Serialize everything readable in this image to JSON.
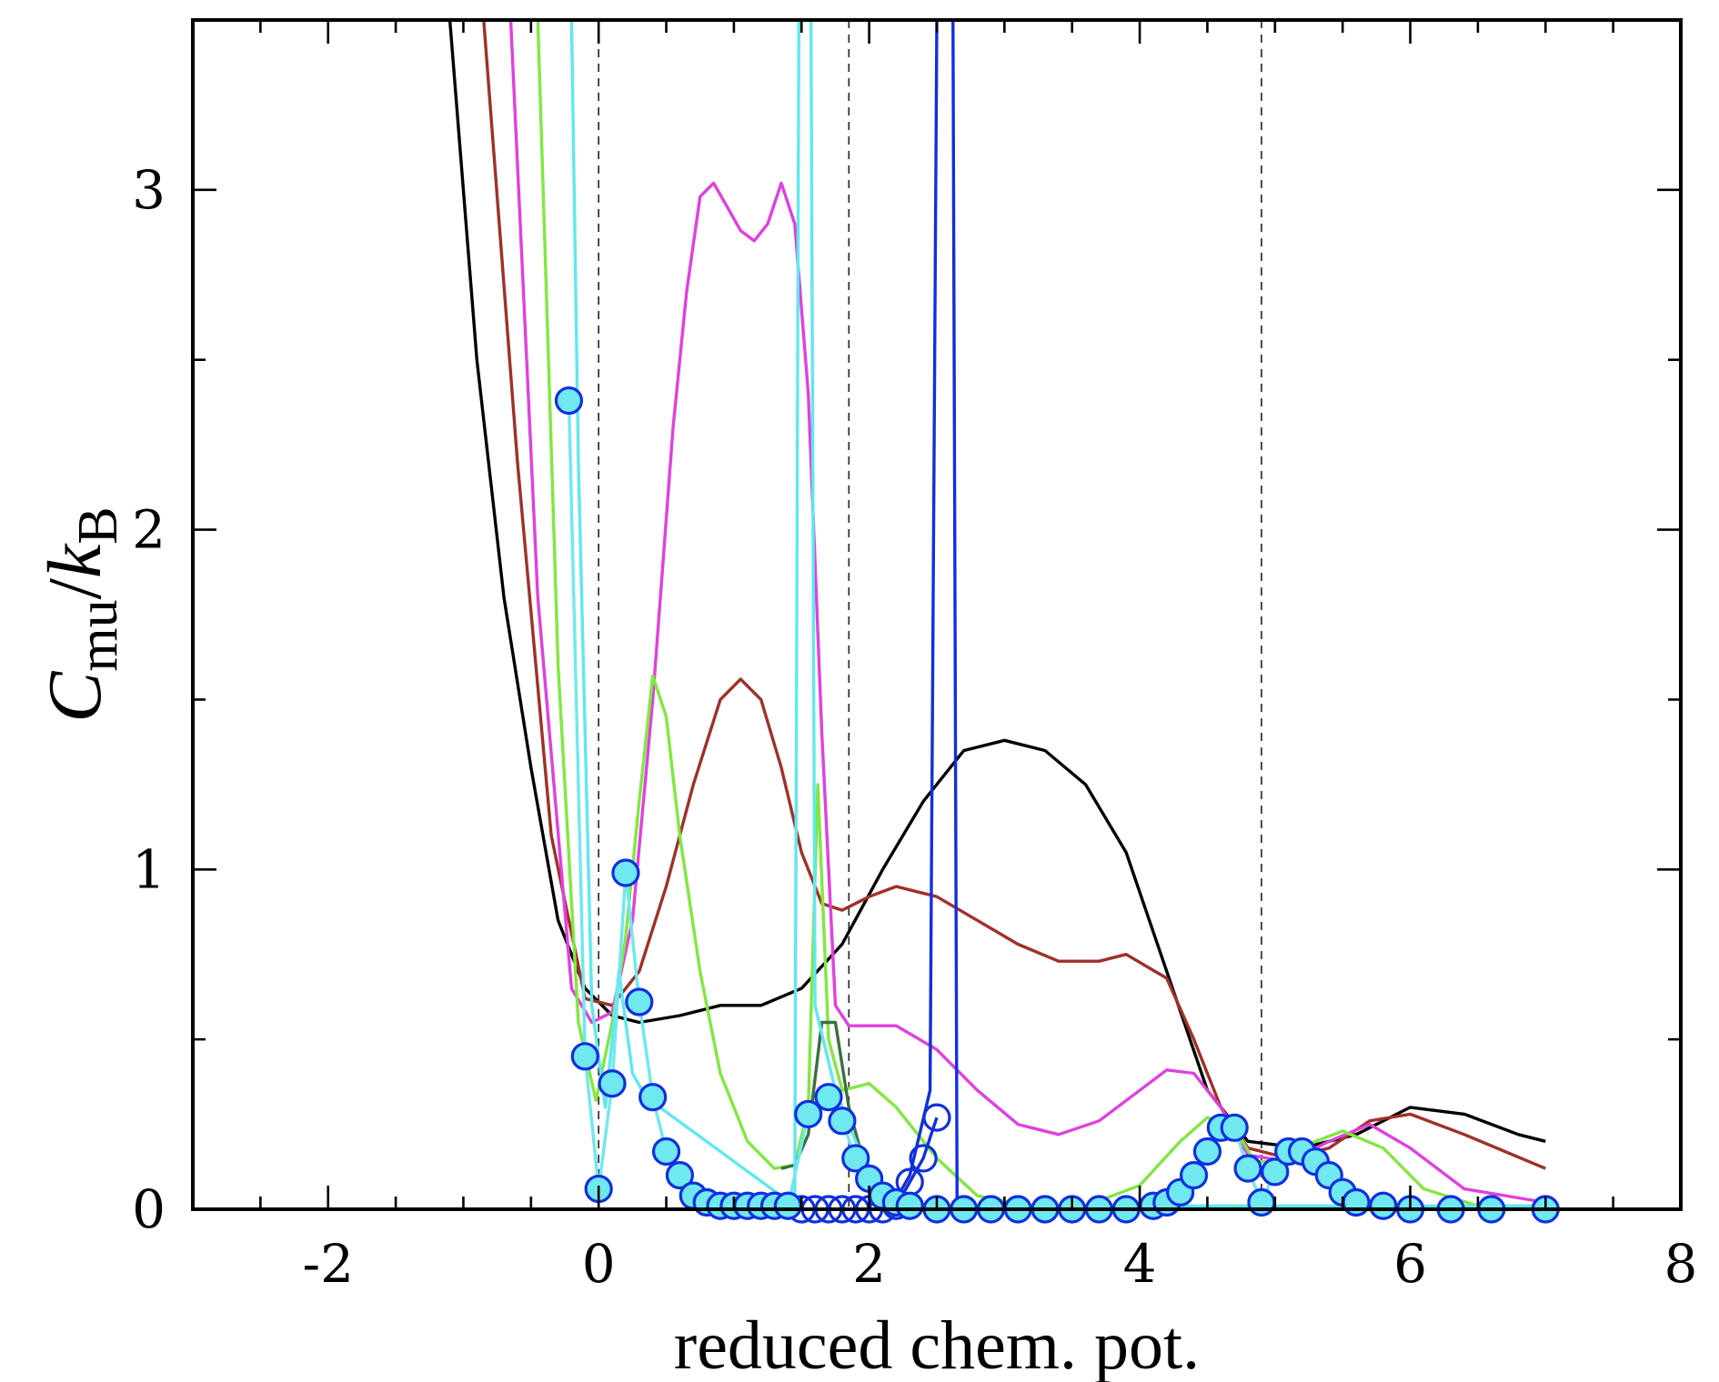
{
  "chart_data": {
    "type": "line",
    "title": "",
    "xlabel": "reduced chem. pot.",
    "ylabel": {
      "main": "C",
      "main_sub": "mu",
      "slash": "/",
      "denom": "k",
      "denom_sub": "B"
    },
    "xlim": [
      -3,
      8
    ],
    "ylim": [
      0,
      3.5
    ],
    "x_ticks": [
      -2,
      0,
      2,
      4,
      6,
      8
    ],
    "x_tick_labels": [
      "-2",
      "0",
      "2",
      "4",
      "6",
      "8"
    ],
    "y_ticks": [
      0,
      1,
      2,
      3
    ],
    "y_tick_labels": [
      "0",
      "1",
      "2",
      "3"
    ],
    "reference_lines_x": [
      0,
      1.85,
      4.9
    ],
    "grid": false,
    "series": [
      {
        "name": "black",
        "color": "#000000",
        "points": [
          [
            -1.1,
            3.5
          ],
          [
            -0.9,
            2.5
          ],
          [
            -0.7,
            1.8
          ],
          [
            -0.5,
            1.3
          ],
          [
            -0.3,
            0.85
          ],
          [
            -0.1,
            0.65
          ],
          [
            0.1,
            0.57
          ],
          [
            0.3,
            0.55
          ],
          [
            0.6,
            0.57
          ],
          [
            0.9,
            0.6
          ],
          [
            1.2,
            0.6
          ],
          [
            1.5,
            0.65
          ],
          [
            1.8,
            0.78
          ],
          [
            2.1,
            1.0
          ],
          [
            2.4,
            1.2
          ],
          [
            2.7,
            1.35
          ],
          [
            3.0,
            1.38
          ],
          [
            3.3,
            1.35
          ],
          [
            3.6,
            1.25
          ],
          [
            3.9,
            1.05
          ],
          [
            4.2,
            0.7
          ],
          [
            4.5,
            0.35
          ],
          [
            4.8,
            0.2
          ],
          [
            5.2,
            0.18
          ],
          [
            5.6,
            0.22
          ],
          [
            6.0,
            0.3
          ],
          [
            6.4,
            0.28
          ],
          [
            6.8,
            0.22
          ],
          [
            7.0,
            0.2
          ]
        ]
      },
      {
        "name": "brown",
        "color": "#a0302a",
        "points": [
          [
            -0.85,
            3.5
          ],
          [
            -0.6,
            2.2
          ],
          [
            -0.35,
            1.1
          ],
          [
            -0.1,
            0.62
          ],
          [
            0.1,
            0.6
          ],
          [
            0.3,
            0.7
          ],
          [
            0.5,
            0.95
          ],
          [
            0.7,
            1.25
          ],
          [
            0.9,
            1.5
          ],
          [
            1.05,
            1.56
          ],
          [
            1.2,
            1.5
          ],
          [
            1.35,
            1.3
          ],
          [
            1.5,
            1.05
          ],
          [
            1.65,
            0.9
          ],
          [
            1.8,
            0.88
          ],
          [
            2.0,
            0.92
          ],
          [
            2.2,
            0.95
          ],
          [
            2.5,
            0.92
          ],
          [
            2.8,
            0.85
          ],
          [
            3.1,
            0.78
          ],
          [
            3.4,
            0.73
          ],
          [
            3.7,
            0.73
          ],
          [
            3.9,
            0.75
          ],
          [
            4.2,
            0.68
          ],
          [
            4.4,
            0.5
          ],
          [
            4.6,
            0.3
          ],
          [
            4.8,
            0.18
          ],
          [
            5.1,
            0.15
          ],
          [
            5.4,
            0.18
          ],
          [
            5.7,
            0.26
          ],
          [
            6.0,
            0.28
          ],
          [
            6.4,
            0.22
          ],
          [
            7.0,
            0.12
          ]
        ]
      },
      {
        "name": "magenta",
        "color": "#e040e0",
        "points": [
          [
            -0.65,
            3.5
          ],
          [
            -0.45,
            1.8
          ],
          [
            -0.2,
            0.65
          ],
          [
            -0.05,
            0.55
          ],
          [
            0.1,
            0.58
          ],
          [
            0.25,
            0.85
          ],
          [
            0.4,
            1.5
          ],
          [
            0.55,
            2.3
          ],
          [
            0.65,
            2.7
          ],
          [
            0.75,
            2.98
          ],
          [
            0.85,
            3.02
          ],
          [
            0.95,
            2.95
          ],
          [
            1.05,
            2.88
          ],
          [
            1.15,
            2.85
          ],
          [
            1.25,
            2.9
          ],
          [
            1.35,
            3.02
          ],
          [
            1.45,
            2.9
          ],
          [
            1.55,
            2.4
          ],
          [
            1.65,
            1.4
          ],
          [
            1.75,
            0.6
          ],
          [
            1.85,
            0.54
          ],
          [
            2.2,
            0.54
          ],
          [
            2.5,
            0.47
          ],
          [
            2.8,
            0.35
          ],
          [
            3.1,
            0.25
          ],
          [
            3.4,
            0.22
          ],
          [
            3.7,
            0.26
          ],
          [
            4.0,
            0.35
          ],
          [
            4.2,
            0.41
          ],
          [
            4.4,
            0.4
          ],
          [
            4.6,
            0.3
          ],
          [
            4.8,
            0.16
          ],
          [
            5.1,
            0.14
          ],
          [
            5.4,
            0.2
          ],
          [
            5.7,
            0.25
          ],
          [
            6.0,
            0.18
          ],
          [
            6.4,
            0.06
          ],
          [
            7.0,
            0.02
          ]
        ]
      },
      {
        "name": "green",
        "color": "#80e840",
        "points": [
          [
            -0.45,
            3.5
          ],
          [
            -0.3,
            1.6
          ],
          [
            -0.15,
            0.55
          ],
          [
            -0.02,
            0.32
          ],
          [
            0.1,
            0.55
          ],
          [
            0.2,
            0.8
          ],
          [
            0.3,
            1.2
          ],
          [
            0.4,
            1.57
          ],
          [
            0.5,
            1.45
          ],
          [
            0.6,
            1.1
          ],
          [
            0.75,
            0.7
          ],
          [
            0.9,
            0.4
          ],
          [
            1.1,
            0.2
          ],
          [
            1.3,
            0.12
          ],
          [
            1.45,
            0.13
          ],
          [
            1.55,
            0.3
          ],
          [
            1.62,
            1.25
          ],
          [
            1.7,
            0.5
          ],
          [
            1.8,
            0.35
          ],
          [
            2.0,
            0.37
          ],
          [
            2.2,
            0.3
          ],
          [
            2.5,
            0.15
          ],
          [
            2.8,
            0.04
          ],
          [
            3.2,
            0.01
          ],
          [
            3.6,
            0.01
          ],
          [
            4.0,
            0.07
          ],
          [
            4.3,
            0.2
          ],
          [
            4.5,
            0.27
          ],
          [
            4.7,
            0.24
          ],
          [
            4.85,
            0.14
          ],
          [
            5.0,
            0.14
          ],
          [
            5.3,
            0.2
          ],
          [
            5.5,
            0.23
          ],
          [
            5.8,
            0.18
          ],
          [
            6.1,
            0.06
          ],
          [
            6.5,
            0.01
          ],
          [
            7.0,
            0.01
          ]
        ]
      },
      {
        "name": "dark-green",
        "color": "#3a7040",
        "points": [
          [
            1.35,
            0.12
          ],
          [
            1.45,
            0.13
          ],
          [
            1.55,
            0.22
          ],
          [
            1.65,
            0.55
          ],
          [
            1.75,
            0.55
          ],
          [
            1.85,
            0.3
          ],
          [
            2.0,
            0.08
          ]
        ]
      },
      {
        "name": "cyan",
        "color": "#60e8f0",
        "points": [
          [
            -0.2,
            3.5
          ],
          [
            -0.15,
            2.2
          ],
          [
            -0.05,
            0.6
          ],
          [
            0.05,
            0.3
          ],
          [
            0.15,
            0.7
          ],
          [
            0.25,
            0.4
          ],
          [
            0.35,
            0.33
          ],
          [
            1.45,
            0.01
          ],
          [
            1.48,
            3.5
          ],
          [
            1.57,
            3.5
          ],
          [
            1.6,
            0.6
          ],
          [
            1.75,
            0.35
          ],
          [
            1.9,
            0.2
          ],
          [
            2.1,
            0.05
          ],
          [
            2.3,
            0.01
          ],
          [
            7.0,
            0.01
          ]
        ]
      },
      {
        "name": "blue",
        "color": "#1030e0",
        "points": [
          [
            2.2,
            0.03
          ],
          [
            2.3,
            0.1
          ],
          [
            2.45,
            0.35
          ],
          [
            2.5,
            3.5
          ],
          [
            2.62,
            3.5
          ],
          [
            2.65,
            0.0
          ]
        ]
      },
      {
        "name": "blue-circles",
        "color": "#1030e0",
        "marker": "hollow-circle",
        "points": [
          [
            1.5,
            0.0
          ],
          [
            1.6,
            0.0
          ],
          [
            1.7,
            0.0
          ],
          [
            1.8,
            0.0
          ],
          [
            1.9,
            0.0
          ],
          [
            2.0,
            0.0
          ],
          [
            2.1,
            0.0
          ],
          [
            2.2,
            0.01
          ],
          [
            2.3,
            0.08
          ],
          [
            2.4,
            0.15
          ],
          [
            2.5,
            0.27
          ]
        ]
      },
      {
        "name": "cyan-circles",
        "color": "#70e8f0",
        "marker": "filled-circle",
        "points": [
          [
            -0.22,
            2.38
          ],
          [
            -0.1,
            0.45
          ],
          [
            0.0,
            0.06
          ],
          [
            0.1,
            0.37
          ],
          [
            0.2,
            0.99
          ],
          [
            0.3,
            0.61
          ],
          [
            0.4,
            0.33
          ],
          [
            0.5,
            0.17
          ],
          [
            0.6,
            0.1
          ],
          [
            0.7,
            0.04
          ],
          [
            0.8,
            0.02
          ],
          [
            0.9,
            0.01
          ],
          [
            1.0,
            0.01
          ],
          [
            1.1,
            0.01
          ],
          [
            1.2,
            0.01
          ],
          [
            1.3,
            0.01
          ],
          [
            1.4,
            0.01
          ],
          [
            1.55,
            0.28
          ],
          [
            1.7,
            0.33
          ],
          [
            1.8,
            0.26
          ],
          [
            1.9,
            0.15
          ],
          [
            2.0,
            0.09
          ],
          [
            2.1,
            0.04
          ],
          [
            2.2,
            0.02
          ],
          [
            2.3,
            0.01
          ],
          [
            2.5,
            0.0
          ],
          [
            2.7,
            0.0
          ],
          [
            2.9,
            0.0
          ],
          [
            3.1,
            0.0
          ],
          [
            3.3,
            0.0
          ],
          [
            3.5,
            0.0
          ],
          [
            3.7,
            0.0
          ],
          [
            3.9,
            0.0
          ],
          [
            4.1,
            0.01
          ],
          [
            4.2,
            0.02
          ],
          [
            4.3,
            0.05
          ],
          [
            4.4,
            0.1
          ],
          [
            4.5,
            0.17
          ],
          [
            4.6,
            0.24
          ],
          [
            4.7,
            0.24
          ],
          [
            4.8,
            0.12
          ],
          [
            4.9,
            0.02
          ],
          [
            5.0,
            0.11
          ],
          [
            5.1,
            0.17
          ],
          [
            5.2,
            0.17
          ],
          [
            5.3,
            0.14
          ],
          [
            5.4,
            0.1
          ],
          [
            5.5,
            0.05
          ],
          [
            5.6,
            0.02
          ],
          [
            5.8,
            0.01
          ],
          [
            6.0,
            0.0
          ],
          [
            6.3,
            0.0
          ],
          [
            6.6,
            0.0
          ],
          [
            7.0,
            0.0
          ]
        ]
      }
    ]
  }
}
